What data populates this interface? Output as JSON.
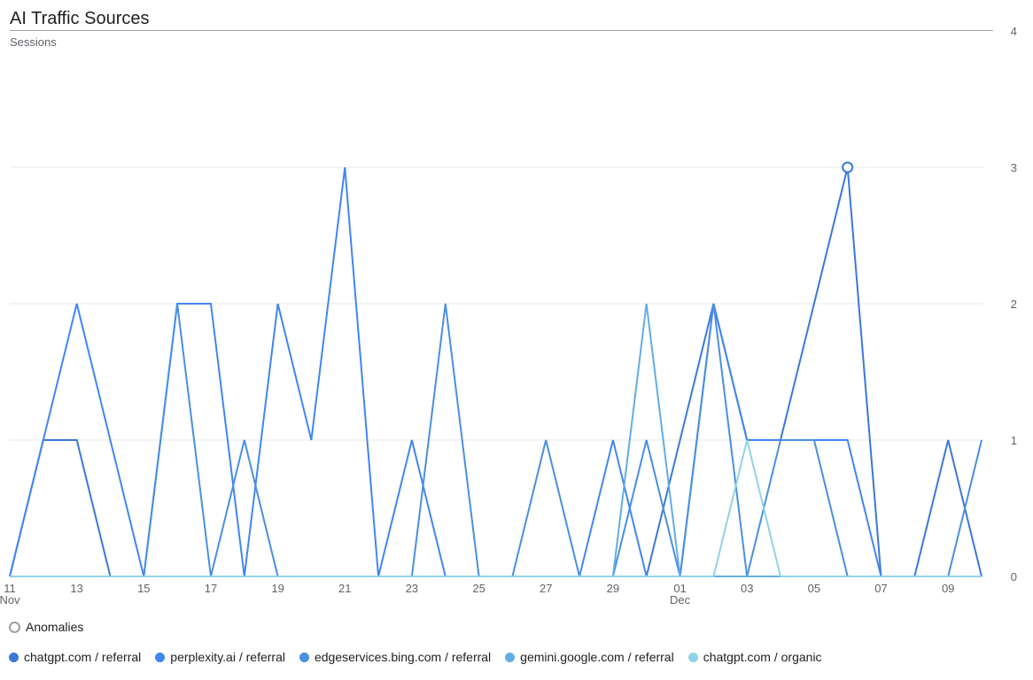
{
  "chart_data": {
    "type": "line",
    "title": "AI Traffic Sources",
    "ylabel": "Sessions",
    "ylim": [
      0,
      4
    ],
    "yticks": [
      0,
      1,
      2,
      3,
      4
    ],
    "x": [
      "Nov 11",
      "Nov 12",
      "Nov 13",
      "Nov 14",
      "Nov 15",
      "Nov 16",
      "Nov 17",
      "Nov 18",
      "Nov 19",
      "Nov 20",
      "Nov 21",
      "Nov 22",
      "Nov 23",
      "Nov 24",
      "Nov 25",
      "Nov 26",
      "Nov 27",
      "Nov 28",
      "Nov 29",
      "Nov 30",
      "Dec 01",
      "Dec 02",
      "Dec 03",
      "Dec 04",
      "Dec 05",
      "Dec 06",
      "Dec 07",
      "Dec 08",
      "Dec 09",
      "Dec 10"
    ],
    "xticks": [
      {
        "index": 0,
        "label": "11",
        "sub": "Nov"
      },
      {
        "index": 2,
        "label": "13"
      },
      {
        "index": 4,
        "label": "15"
      },
      {
        "index": 6,
        "label": "17"
      },
      {
        "index": 8,
        "label": "19"
      },
      {
        "index": 10,
        "label": "21"
      },
      {
        "index": 12,
        "label": "23"
      },
      {
        "index": 14,
        "label": "25"
      },
      {
        "index": 16,
        "label": "27"
      },
      {
        "index": 18,
        "label": "29"
      },
      {
        "index": 20,
        "label": "01",
        "sub": "Dec"
      },
      {
        "index": 22,
        "label": "03"
      },
      {
        "index": 24,
        "label": "05"
      },
      {
        "index": 26,
        "label": "07"
      },
      {
        "index": 28,
        "label": "09"
      }
    ],
    "series": [
      {
        "name": "chatgpt.com / referral",
        "color": "#3b78d8",
        "values": [
          0,
          1,
          1,
          0,
          0,
          0,
          0,
          0,
          0,
          0,
          0,
          0,
          0,
          0,
          0,
          0,
          0,
          0,
          0,
          0,
          1,
          2,
          1,
          1,
          2,
          3,
          0,
          0,
          1,
          0
        ]
      },
      {
        "name": "perplexity.ai / referral",
        "color": "#4285f4",
        "values": [
          0,
          1,
          2,
          1,
          0,
          2,
          2,
          0,
          2,
          1,
          3,
          0,
          1,
          0,
          0,
          0,
          0,
          0,
          1,
          0,
          0,
          2,
          1,
          1,
          1,
          1,
          0,
          0,
          0,
          0
        ]
      },
      {
        "name": "edgeservices.bing.com / referral",
        "color": "#4a8fe0",
        "values": [
          0,
          0,
          0,
          0,
          0,
          2,
          0,
          1,
          0,
          0,
          0,
          0,
          0,
          2,
          0,
          0,
          1,
          0,
          0,
          1,
          0,
          2,
          0,
          1,
          1,
          0,
          0,
          0,
          0,
          1
        ]
      },
      {
        "name": "gemini.google.com / referral",
        "color": "#63ade6",
        "values": [
          0,
          0,
          0,
          0,
          0,
          0,
          0,
          0,
          0,
          0,
          0,
          0,
          0,
          0,
          0,
          0,
          0,
          0,
          0,
          2,
          0,
          0,
          0,
          0,
          0,
          0,
          0,
          0,
          0,
          0
        ]
      },
      {
        "name": "chatgpt.com / organic",
        "color": "#8fd3e8",
        "values": [
          0,
          0,
          0,
          0,
          0,
          0,
          0,
          0,
          0,
          0,
          0,
          0,
          0,
          0,
          0,
          0,
          0,
          0,
          0,
          0,
          0,
          0,
          1,
          0,
          0,
          0,
          0,
          0,
          0,
          0
        ]
      }
    ],
    "anomalies": [
      {
        "series": 0,
        "index": 25,
        "value": 3
      }
    ],
    "anomaly_legend": "Anomalies",
    "grid": true,
    "legend_position": "bottom-left"
  }
}
